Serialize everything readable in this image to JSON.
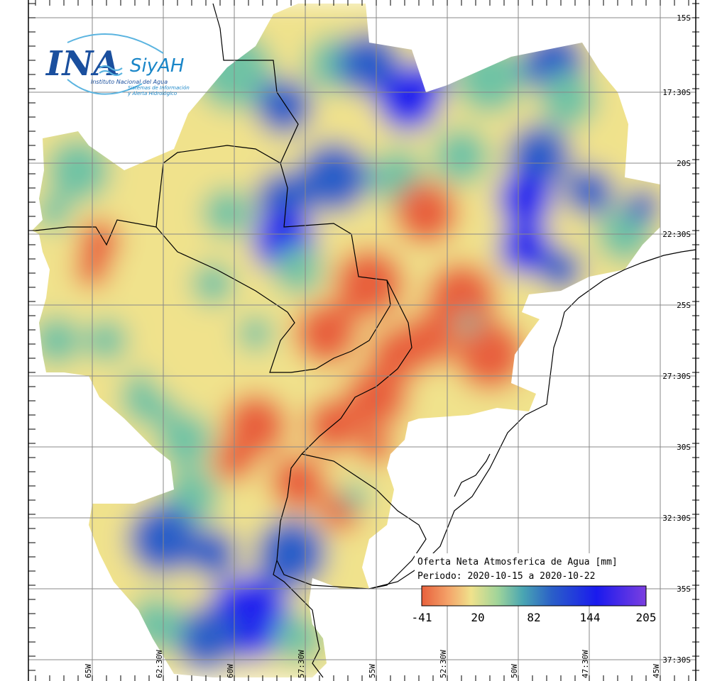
{
  "logo": {
    "ina": "INA",
    "siyah": "SiyAH",
    "institute": "Instituto Nacional del Agua",
    "system_line1": "Sistemas de Información",
    "system_line2": "y Alerta Hidrológico"
  },
  "map": {
    "lat_labels": [
      "15S",
      "17:30S",
      "20S",
      "22:30S",
      "25S",
      "27:30S",
      "30S",
      "32:30S",
      "35S",
      "37:30S"
    ],
    "lon_labels": [
      "65W",
      "62:30W",
      "60W",
      "57:30W",
      "55W",
      "52:30W",
      "50W",
      "47:30W",
      "45W"
    ],
    "colors": {
      "negative": "#e8603c",
      "low": "#f0e28c",
      "mid": "#6fc3a4",
      "high": "#2a5fc8",
      "max": "#2222ee",
      "purple": "#7b3fe0"
    }
  },
  "legend": {
    "title": "Oferta Neta Atmosferica de Agua [mm]",
    "period": "Periodo: 2020-10-15 a 2020-10-22",
    "ticks": [
      "-41",
      "20",
      "82",
      "144",
      "205"
    ]
  }
}
